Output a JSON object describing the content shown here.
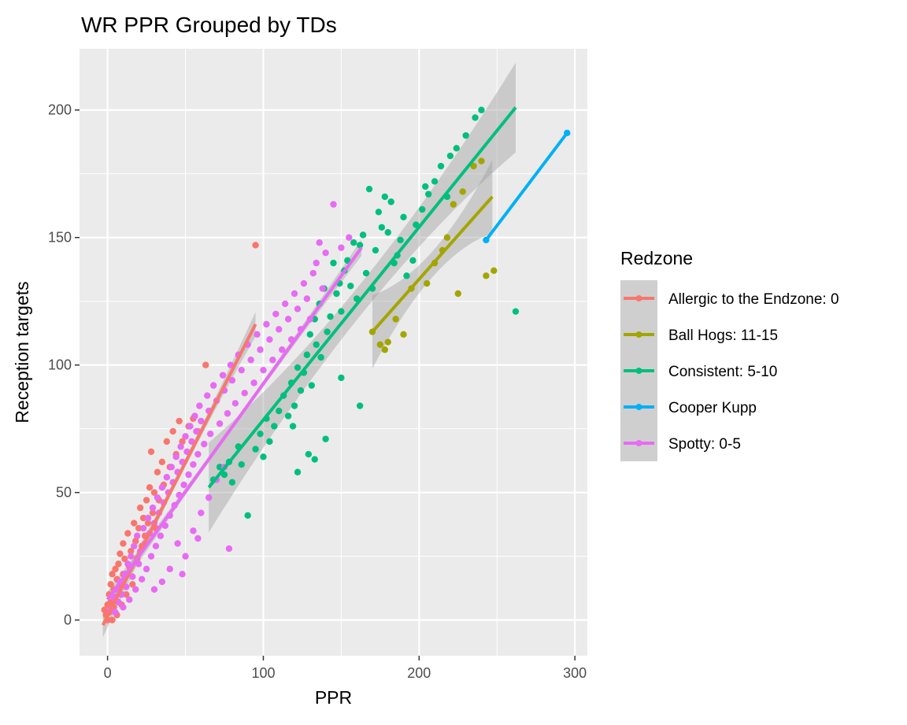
{
  "chart_data": {
    "type": "scatter",
    "title": "WR PPR Grouped by TDs",
    "xlabel": "PPR",
    "ylabel": "Reception targets",
    "xlim": [
      -18,
      308
    ],
    "ylim": [
      -14,
      224
    ],
    "x_ticks": [
      0,
      100,
      200,
      300
    ],
    "y_ticks": [
      0,
      50,
      100,
      150,
      200
    ],
    "grid": true,
    "legend": {
      "title": "Redzone",
      "placement": "right"
    },
    "series": [
      {
        "name": "Allergic to the Endzone: 0",
        "color": "#F8766D",
        "trend": {
          "x0": -3,
          "y0": -2,
          "x1": 95,
          "y1": 116,
          "band": 3
        },
        "points": [
          [
            -2,
            4
          ],
          [
            -1,
            2
          ],
          [
            0,
            0
          ],
          [
            0,
            6
          ],
          [
            1,
            10
          ],
          [
            1,
            3
          ],
          [
            2,
            14
          ],
          [
            2,
            7
          ],
          [
            3,
            0
          ],
          [
            3,
            18
          ],
          [
            4,
            12
          ],
          [
            4,
            5
          ],
          [
            5,
            20
          ],
          [
            5,
            9
          ],
          [
            6,
            16
          ],
          [
            6,
            2
          ],
          [
            7,
            22
          ],
          [
            8,
            13
          ],
          [
            8,
            26
          ],
          [
            9,
            6
          ],
          [
            10,
            18
          ],
          [
            10,
            30
          ],
          [
            11,
            24
          ],
          [
            12,
            10
          ],
          [
            13,
            34
          ],
          [
            14,
            21
          ],
          [
            15,
            27
          ],
          [
            16,
            14
          ],
          [
            17,
            38
          ],
          [
            18,
            31
          ],
          [
            19,
            24
          ],
          [
            20,
            36
          ],
          [
            21,
            44
          ],
          [
            22,
            29
          ],
          [
            23,
            40
          ],
          [
            24,
            33
          ],
          [
            25,
            47
          ],
          [
            26,
            38
          ],
          [
            27,
            52
          ],
          [
            28,
            66
          ],
          [
            29,
            42
          ],
          [
            30,
            50
          ],
          [
            31,
            36
          ],
          [
            32,
            58
          ],
          [
            33,
            47
          ],
          [
            35,
            62
          ],
          [
            36,
            53
          ],
          [
            38,
            70
          ],
          [
            40,
            60
          ],
          [
            42,
            74
          ],
          [
            44,
            65
          ],
          [
            46,
            78
          ],
          [
            48,
            70
          ],
          [
            50,
            72
          ],
          [
            52,
            76
          ],
          [
            55,
            79
          ],
          [
            58,
            74
          ],
          [
            63,
            100
          ],
          [
            95,
            147
          ]
        ]
      },
      {
        "name": "Ball Hogs: 11-15",
        "color": "#A3A500",
        "trend": {
          "x0": 170,
          "y0": 113,
          "x1": 247,
          "y1": 166,
          "band": 9
        },
        "points": [
          [
            170,
            113
          ],
          [
            175,
            108
          ],
          [
            178,
            106
          ],
          [
            180,
            109
          ],
          [
            185,
            118
          ],
          [
            190,
            112
          ],
          [
            195,
            130
          ],
          [
            205,
            132
          ],
          [
            210,
            140
          ],
          [
            215,
            145
          ],
          [
            218,
            150
          ],
          [
            222,
            163
          ],
          [
            225,
            128
          ],
          [
            228,
            168
          ],
          [
            235,
            178
          ],
          [
            240,
            180
          ],
          [
            243,
            135
          ],
          [
            248,
            137
          ]
        ]
      },
      {
        "name": "Consistent: 5-10",
        "color": "#00BF7D",
        "trend": {
          "x0": 65,
          "y0": 52,
          "x1": 262,
          "y1": 201,
          "band": 11
        },
        "points": [
          [
            68,
            55
          ],
          [
            72,
            60
          ],
          [
            75,
            57
          ],
          [
            78,
            62
          ],
          [
            80,
            54
          ],
          [
            84,
            68
          ],
          [
            86,
            61
          ],
          [
            90,
            41
          ],
          [
            95,
            67
          ],
          [
            98,
            73
          ],
          [
            100,
            64
          ],
          [
            102,
            79
          ],
          [
            104,
            70
          ],
          [
            107,
            76
          ],
          [
            110,
            82
          ],
          [
            113,
            88
          ],
          [
            116,
            80
          ],
          [
            118,
            93
          ],
          [
            120,
            84
          ],
          [
            122,
            99
          ],
          [
            124,
            90
          ],
          [
            126,
            97
          ],
          [
            128,
            104
          ],
          [
            130,
            112
          ],
          [
            131,
            92
          ],
          [
            133,
            118
          ],
          [
            134,
            108
          ],
          [
            136,
            124
          ],
          [
            137,
            103
          ],
          [
            139,
            130
          ],
          [
            141,
            113
          ],
          [
            143,
            119
          ],
          [
            145,
            140
          ],
          [
            147,
            128
          ],
          [
            149,
            132
          ],
          [
            150,
            121
          ],
          [
            152,
            137
          ],
          [
            154,
            141
          ],
          [
            156,
            131
          ],
          [
            158,
            148
          ],
          [
            160,
            126
          ],
          [
            162,
            147
          ],
          [
            164,
            151
          ],
          [
            166,
            136
          ],
          [
            168,
            169
          ],
          [
            170,
            130
          ],
          [
            172,
            145
          ],
          [
            174,
            160
          ],
          [
            176,
            154
          ],
          [
            178,
            166
          ],
          [
            180,
            152
          ],
          [
            182,
            164
          ],
          [
            184,
            140
          ],
          [
            186,
            143
          ],
          [
            188,
            149
          ],
          [
            190,
            158
          ],
          [
            192,
            135
          ],
          [
            196,
            141
          ],
          [
            198,
            155
          ],
          [
            202,
            161
          ],
          [
            204,
            170
          ],
          [
            206,
            167
          ],
          [
            210,
            172
          ],
          [
            214,
            178
          ],
          [
            218,
            166
          ],
          [
            220,
            182
          ],
          [
            224,
            185
          ],
          [
            230,
            190
          ],
          [
            236,
            197
          ],
          [
            240,
            200
          ],
          [
            122,
            58
          ],
          [
            140,
            71
          ],
          [
            133,
            63
          ],
          [
            129,
            65
          ],
          [
            119,
            76
          ],
          [
            162,
            84
          ],
          [
            150,
            95
          ],
          [
            262,
            121
          ]
        ]
      },
      {
        "name": "Cooper Kupp",
        "color": "#00B0F6",
        "trend": {
          "x0": 243,
          "y0": 149,
          "x1": 295,
          "y1": 191,
          "band": 0
        },
        "points": [
          [
            243,
            149
          ],
          [
            295,
            191
          ]
        ]
      },
      {
        "name": "Spotty: 0-5",
        "color": "#E76BF3",
        "trend": {
          "x0": 0,
          "y0": 8,
          "x1": 163,
          "y1": 146,
          "band": 2
        },
        "points": [
          [
            2,
            4
          ],
          [
            4,
            9
          ],
          [
            5,
            3
          ],
          [
            6,
            12
          ],
          [
            7,
            7
          ],
          [
            8,
            15
          ],
          [
            9,
            10
          ],
          [
            10,
            5
          ],
          [
            11,
            18
          ],
          [
            12,
            13
          ],
          [
            13,
            22
          ],
          [
            14,
            8
          ],
          [
            15,
            25
          ],
          [
            16,
            17
          ],
          [
            17,
            29
          ],
          [
            18,
            12
          ],
          [
            19,
            33
          ],
          [
            20,
            22
          ],
          [
            21,
            27
          ],
          [
            22,
            16
          ],
          [
            23,
            36
          ],
          [
            24,
            30
          ],
          [
            25,
            20
          ],
          [
            26,
            40
          ],
          [
            27,
            34
          ],
          [
            28,
            25
          ],
          [
            29,
            44
          ],
          [
            30,
            38
          ],
          [
            31,
            29
          ],
          [
            32,
            48
          ],
          [
            33,
            42
          ],
          [
            34,
            33
          ],
          [
            35,
            52
          ],
          [
            36,
            46
          ],
          [
            37,
            37
          ],
          [
            38,
            56
          ],
          [
            39,
            50
          ],
          [
            40,
            41
          ],
          [
            41,
            60
          ],
          [
            42,
            54
          ],
          [
            43,
            45
          ],
          [
            44,
            64
          ],
          [
            45,
            58
          ],
          [
            46,
            49
          ],
          [
            47,
            68
          ],
          [
            48,
            62
          ],
          [
            49,
            53
          ],
          [
            50,
            72
          ],
          [
            51,
            66
          ],
          [
            52,
            57
          ],
          [
            53,
            76
          ],
          [
            54,
            70
          ],
          [
            55,
            61
          ],
          [
            56,
            80
          ],
          [
            57,
            74
          ],
          [
            58,
            65
          ],
          [
            59,
            84
          ],
          [
            60,
            78
          ],
          [
            62,
            69
          ],
          [
            64,
            88
          ],
          [
            65,
            82
          ],
          [
            66,
            73
          ],
          [
            68,
            92
          ],
          [
            70,
            86
          ],
          [
            72,
            77
          ],
          [
            74,
            96
          ],
          [
            75,
            90
          ],
          [
            77,
            81
          ],
          [
            79,
            100
          ],
          [
            80,
            94
          ],
          [
            82,
            85
          ],
          [
            84,
            104
          ],
          [
            86,
            98
          ],
          [
            88,
            89
          ],
          [
            90,
            108
          ],
          [
            92,
            102
          ],
          [
            94,
            93
          ],
          [
            96,
            112
          ],
          [
            98,
            106
          ],
          [
            100,
            98
          ],
          [
            102,
            116
          ],
          [
            104,
            110
          ],
          [
            106,
            102
          ],
          [
            108,
            120
          ],
          [
            110,
            114
          ],
          [
            112,
            106
          ],
          [
            114,
            124
          ],
          [
            116,
            118
          ],
          [
            118,
            110
          ],
          [
            120,
            128
          ],
          [
            122,
            122
          ],
          [
            124,
            114
          ],
          [
            126,
            132
          ],
          [
            128,
            126
          ],
          [
            130,
            118
          ],
          [
            132,
            136
          ],
          [
            134,
            140
          ],
          [
            136,
            148
          ],
          [
            138,
            130
          ],
          [
            140,
            144
          ],
          [
            145,
            163
          ],
          [
            150,
            146
          ],
          [
            155,
            150
          ],
          [
            30,
            12
          ],
          [
            40,
            20
          ],
          [
            45,
            30
          ],
          [
            50,
            25
          ],
          [
            55,
            35
          ],
          [
            60,
            42
          ],
          [
            65,
            48
          ],
          [
            70,
            55
          ],
          [
            75,
            60
          ],
          [
            78,
            28
          ],
          [
            58,
            32
          ],
          [
            48,
            18
          ],
          [
            35,
            15
          ]
        ]
      }
    ]
  }
}
